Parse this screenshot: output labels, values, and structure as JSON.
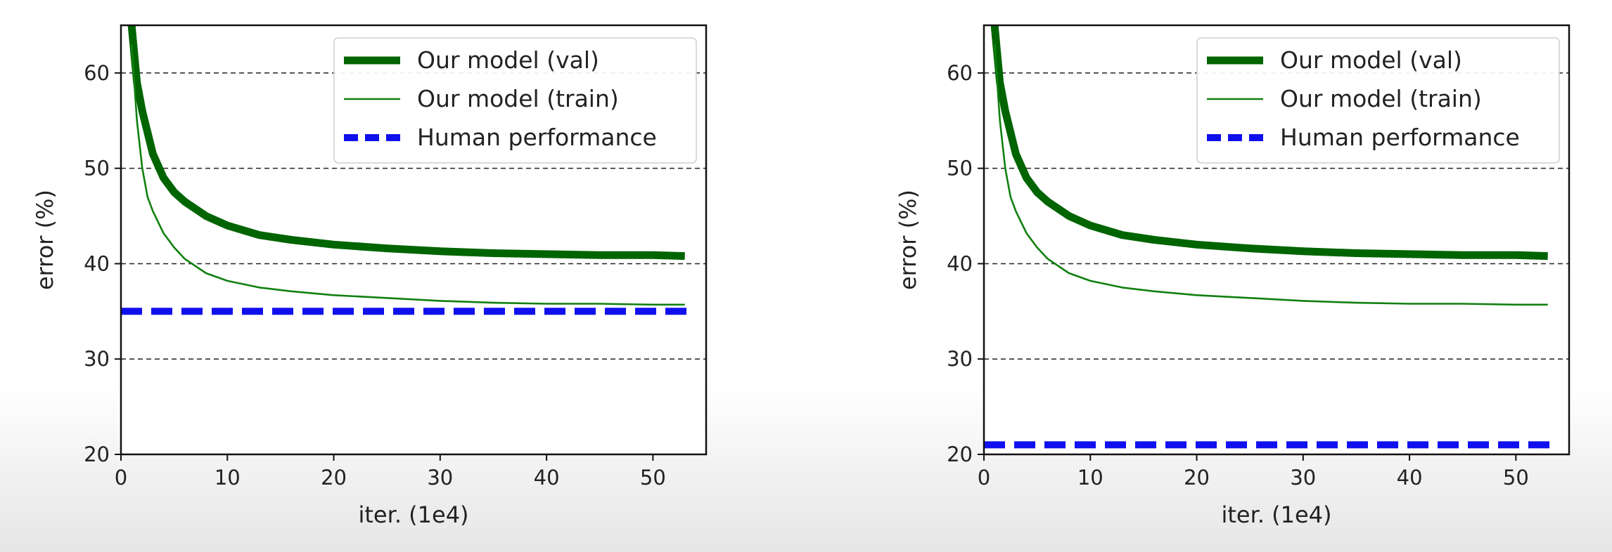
{
  "chart_data": [
    {
      "type": "line",
      "xlabel": "iter. (1e4)",
      "ylabel": "error (%)",
      "xlim": [
        0,
        55
      ],
      "ylim": [
        20,
        65
      ],
      "xticks": [
        0,
        10,
        20,
        30,
        40,
        50
      ],
      "yticks": [
        20,
        30,
        40,
        50,
        60
      ],
      "grid": "horizontal dashed",
      "legend_position": "top-right",
      "series": [
        {
          "name": "Our model (val)",
          "color": "#006400",
          "style": "thick-solid",
          "x": [
            1,
            1.5,
            2,
            3,
            4,
            5,
            6,
            8,
            10,
            13,
            16,
            20,
            25,
            30,
            35,
            40,
            45,
            50,
            53
          ],
          "y": [
            65,
            59,
            56,
            51.5,
            49,
            47.5,
            46.5,
            45,
            44,
            43,
            42.5,
            42,
            41.6,
            41.3,
            41.1,
            41,
            40.9,
            40.9,
            40.8
          ]
        },
        {
          "name": "Our model (train)",
          "color": "#108010",
          "style": "thin-solid",
          "x": [
            1,
            1.5,
            2,
            2.5,
            3,
            4,
            5,
            6,
            8,
            10,
            13,
            16,
            20,
            25,
            30,
            35,
            40,
            45,
            50,
            53
          ],
          "y": [
            63,
            55,
            50,
            47,
            45.5,
            43.2,
            41.7,
            40.5,
            39,
            38.2,
            37.5,
            37.1,
            36.7,
            36.4,
            36.1,
            35.9,
            35.8,
            35.8,
            35.7,
            35.7
          ]
        },
        {
          "name": "Human performance",
          "color": "#1010ee",
          "style": "dashed",
          "x": [
            0,
            54
          ],
          "y": [
            35,
            35
          ]
        }
      ]
    },
    {
      "type": "line",
      "xlabel": "iter. (1e4)",
      "ylabel": "error (%)",
      "xlim": [
        0,
        55
      ],
      "ylim": [
        20,
        65
      ],
      "xticks": [
        0,
        10,
        20,
        30,
        40,
        50
      ],
      "yticks": [
        20,
        30,
        40,
        50,
        60
      ],
      "grid": "horizontal dashed",
      "legend_position": "top-right",
      "series": [
        {
          "name": "Our model (val)",
          "color": "#006400",
          "style": "thick-solid",
          "x": [
            1,
            1.5,
            2,
            3,
            4,
            5,
            6,
            8,
            10,
            13,
            16,
            20,
            25,
            30,
            35,
            40,
            45,
            50,
            53
          ],
          "y": [
            65,
            59,
            56,
            51.5,
            49,
            47.5,
            46.5,
            45,
            44,
            43,
            42.5,
            42,
            41.6,
            41.3,
            41.1,
            41,
            40.9,
            40.9,
            40.8
          ]
        },
        {
          "name": "Our model (train)",
          "color": "#108010",
          "style": "thin-solid",
          "x": [
            1,
            1.5,
            2,
            2.5,
            3,
            4,
            5,
            6,
            8,
            10,
            13,
            16,
            20,
            25,
            30,
            35,
            40,
            45,
            50,
            53
          ],
          "y": [
            63,
            55,
            50,
            47,
            45.5,
            43.2,
            41.7,
            40.5,
            39,
            38.2,
            37.5,
            37.1,
            36.7,
            36.4,
            36.1,
            35.9,
            35.8,
            35.8,
            35.7,
            35.7
          ]
        },
        {
          "name": "Human performance",
          "color": "#1010ee",
          "style": "dashed",
          "x": [
            0,
            54
          ],
          "y": [
            21,
            21
          ]
        }
      ]
    }
  ]
}
